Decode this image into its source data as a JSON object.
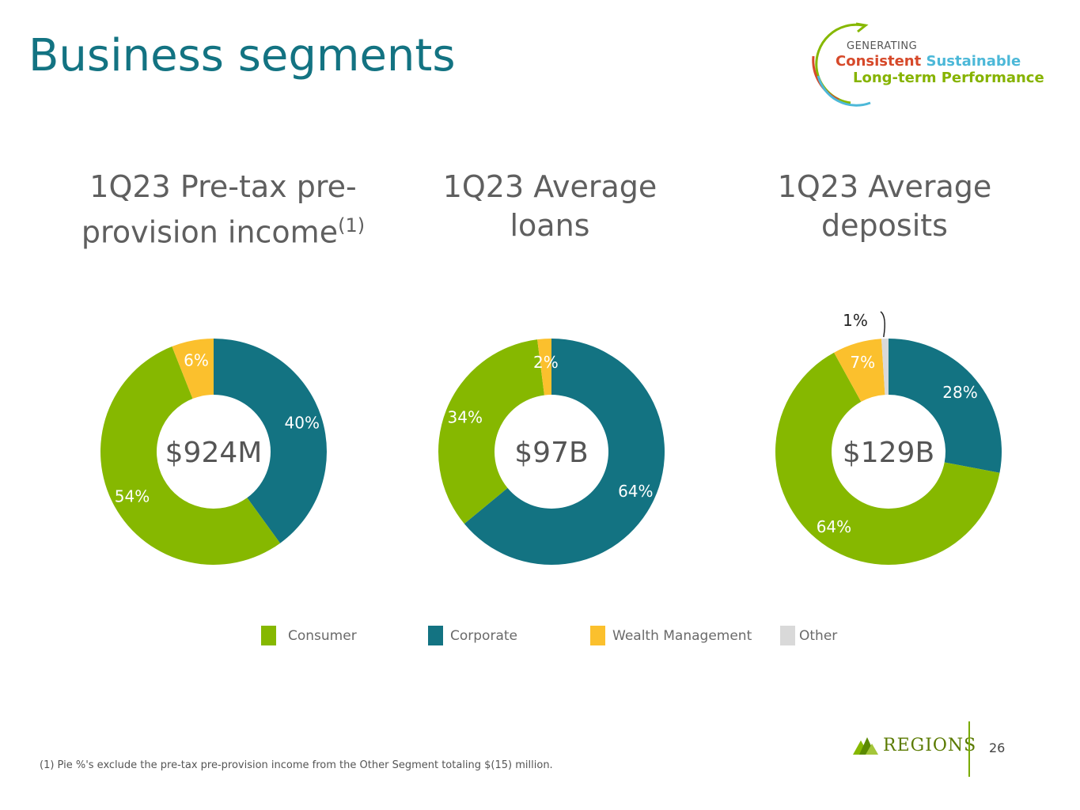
{
  "page": {
    "title": "Business segments",
    "page_number": "26",
    "footnote": "(1) Pie %'s exclude the pre-tax pre-provision income from the Other Segment totaling $(15) million."
  },
  "logo": {
    "generating": "GENERATING",
    "consistent": "Consistent",
    "sustainable": "Sustainable",
    "long_term": "Long-term Performance",
    "brand": "REGIONS"
  },
  "colors": {
    "Consumer": "#86b800",
    "Corporate": "#137382",
    "Wealth Management": "#fbc02d",
    "Other": "#d9d9d9"
  },
  "chart_data": [
    {
      "type": "pie",
      "title_line1": "1Q23 Pre-tax pre-",
      "title_line2": "provision income",
      "title_sup": "(1)",
      "center_label": "$924M",
      "categories": [
        "Corporate",
        "Consumer",
        "Wealth Management"
      ],
      "values": [
        40,
        54,
        6
      ],
      "labels": [
        "40%",
        "54%",
        "6%"
      ]
    },
    {
      "type": "pie",
      "title_line1": "1Q23 Average",
      "title_line2": "loans",
      "center_label": "$97B",
      "categories": [
        "Corporate",
        "Consumer",
        "Wealth Management"
      ],
      "values": [
        64,
        34,
        2
      ],
      "labels": [
        "64%",
        "34%",
        "2%"
      ]
    },
    {
      "type": "pie",
      "title_line1": "1Q23 Average",
      "title_line2": "deposits",
      "center_label": "$129B",
      "categories": [
        "Corporate",
        "Consumer",
        "Wealth Management",
        "Other"
      ],
      "values": [
        28,
        64,
        7,
        1
      ],
      "labels": [
        "28%",
        "64%",
        "7%",
        "1%"
      ]
    }
  ],
  "legend": [
    "Consumer",
    "Corporate",
    "Wealth Management",
    "Other"
  ]
}
